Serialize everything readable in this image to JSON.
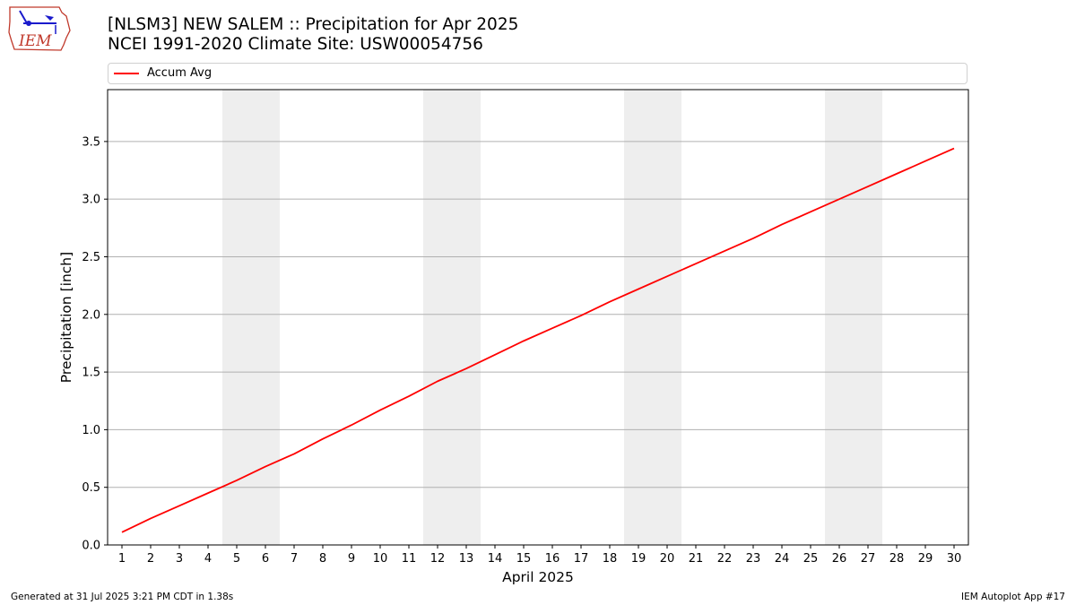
{
  "header": {
    "title_line1": "[NLSM3] NEW SALEM :: Precipitation for Apr 2025",
    "title_line2": "NCEI 1991-2020 Climate Site: USW00054756",
    "logo_text": "IEM"
  },
  "legend": {
    "label": "Accum Avg"
  },
  "footer": {
    "left": "Generated at 31 Jul 2025 3:21 PM CDT in 1.38s",
    "right": "IEM Autoplot App #17"
  },
  "colors": {
    "line": "#ff0000",
    "weekend_band": "#eeeeee",
    "grid": "#b0b0b0"
  },
  "chart_data": {
    "type": "line",
    "xlabel": "April 2025",
    "ylabel": "Precipitation [inch]",
    "x": [
      1,
      2,
      3,
      4,
      5,
      6,
      7,
      8,
      9,
      10,
      11,
      12,
      13,
      14,
      15,
      16,
      17,
      18,
      19,
      20,
      21,
      22,
      23,
      24,
      25,
      26,
      27,
      28,
      29,
      30
    ],
    "xlim": [
      0.5,
      30.5
    ],
    "ylim": [
      0,
      3.95
    ],
    "yticks": [
      0.0,
      0.5,
      1.0,
      1.5,
      2.0,
      2.5,
      3.0,
      3.5
    ],
    "ytick_labels": [
      "0.0",
      "0.5",
      "1.0",
      "1.5",
      "2.0",
      "2.5",
      "3.0",
      "3.5"
    ],
    "xtick_labels": [
      "1",
      "2",
      "3",
      "4",
      "5",
      "6",
      "7",
      "8",
      "9",
      "10",
      "11",
      "12",
      "13",
      "14",
      "15",
      "16",
      "17",
      "18",
      "19",
      "20",
      "21",
      "22",
      "23",
      "24",
      "25",
      "26",
      "27",
      "28",
      "29",
      "30"
    ],
    "grid": "horizontal",
    "legend_position": "top",
    "shaded_days": [
      [
        5,
        6
      ],
      [
        12,
        13
      ],
      [
        19,
        20
      ],
      [
        26,
        27
      ]
    ],
    "series": [
      {
        "name": "Accum Avg",
        "values": [
          0.11,
          0.23,
          0.34,
          0.45,
          0.56,
          0.68,
          0.79,
          0.92,
          1.04,
          1.17,
          1.29,
          1.42,
          1.53,
          1.65,
          1.77,
          1.88,
          1.99,
          2.11,
          2.22,
          2.33,
          2.44,
          2.55,
          2.66,
          2.78,
          2.89,
          3.0,
          3.11,
          3.22,
          3.33,
          3.44
        ]
      }
    ]
  }
}
